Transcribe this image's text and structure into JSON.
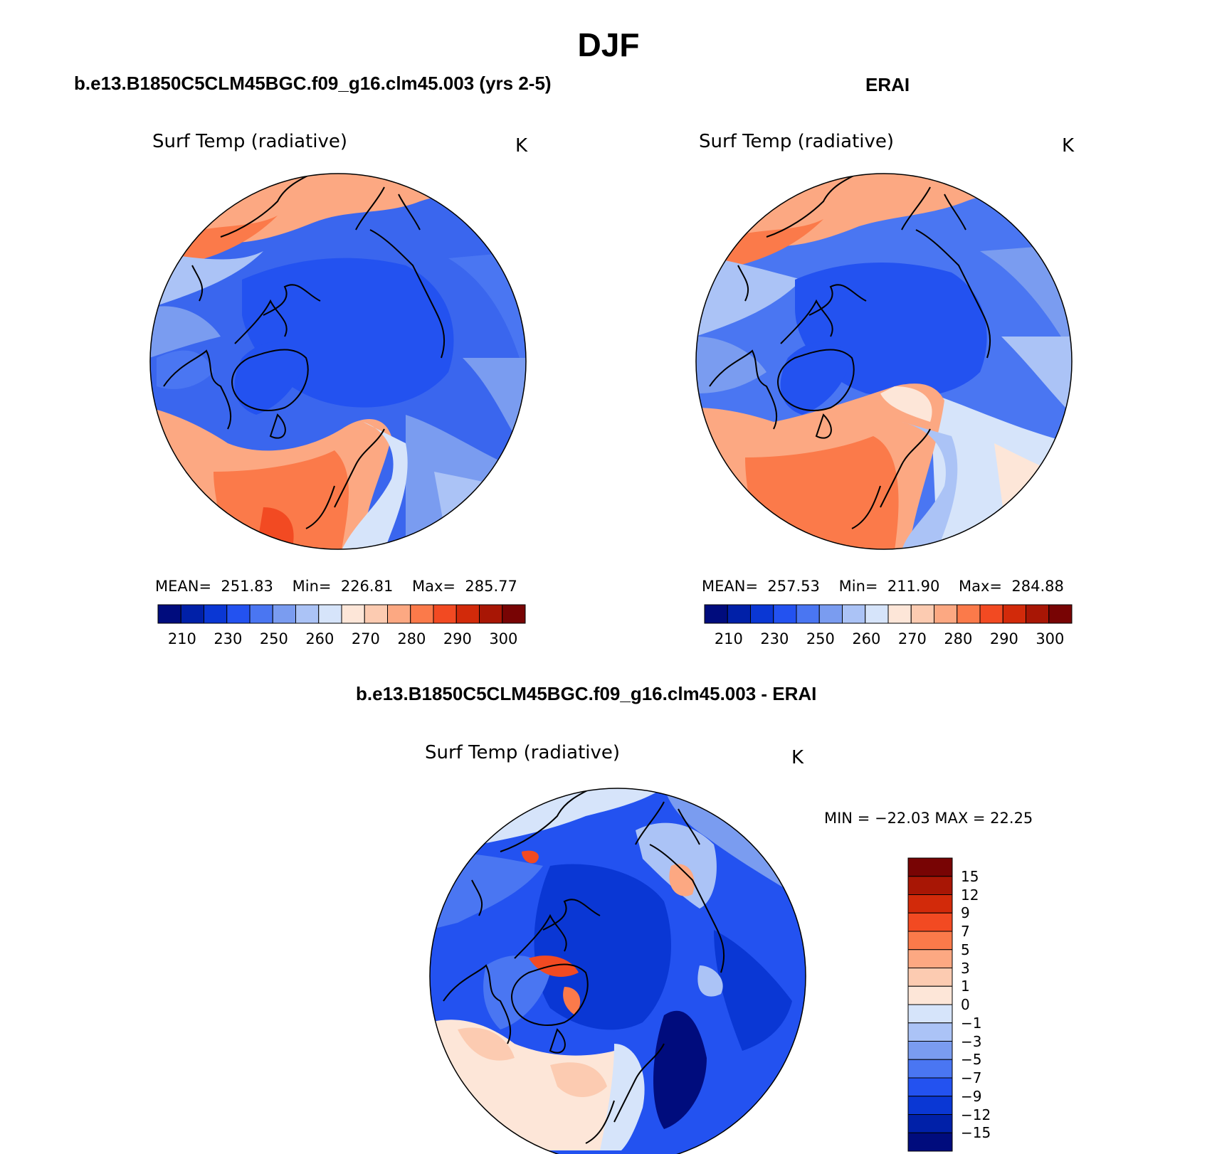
{
  "title": "DJF",
  "panels": [
    {
      "id": "model",
      "case_title": "b.e13.B1850C5CLM45BGC.f09_g16.clm45.003 (yrs 2-5)",
      "variable": "Surf Temp (radiative)",
      "units": "K",
      "stats": {
        "mean_label": "MEAN=",
        "mean": "251.83",
        "min_label": "Min=",
        "min": "226.81",
        "max_label": "Max=",
        "max": "285.77"
      }
    },
    {
      "id": "erai",
      "case_title": "ERAI",
      "variable": "Surf Temp (radiative)",
      "units": "K",
      "stats": {
        "mean_label": "MEAN=",
        "mean": "257.53",
        "min_label": "Min=",
        "min": "211.90",
        "max_label": "Max=",
        "max": "284.88"
      }
    }
  ],
  "difference": {
    "case_title": "b.e13.B1850C5CLM45BGC.f09_g16.clm45.003 - ERAI",
    "variable": "Surf Temp (radiative)",
    "units": "K",
    "stats_text": "MIN = −22.03 MAX =   22.25"
  },
  "abs_colorbar": {
    "colors": [
      "#000c7d",
      "#0020a8",
      "#0a37d4",
      "#2352f0",
      "#4a76f2",
      "#7a9cf0",
      "#abc3f6",
      "#d6e4fa",
      "#fde6d8",
      "#fccbb1",
      "#fca882",
      "#fb7a4a",
      "#f24a22",
      "#d22a0a",
      "#a81605",
      "#780404"
    ],
    "labels": [
      "210",
      "230",
      "250",
      "260",
      "270",
      "280",
      "290",
      "300"
    ]
  },
  "diff_colorbar": {
    "colors": [
      "#000c7d",
      "#0020a8",
      "#0a37d4",
      "#2352f0",
      "#4a76f2",
      "#7a9cf0",
      "#abc3f6",
      "#d6e4fa",
      "#fde6d8",
      "#fccbb1",
      "#fca882",
      "#fb7a4a",
      "#f24a22",
      "#d22a0a",
      "#a81605",
      "#780404"
    ],
    "labels": [
      "15",
      "12",
      "9",
      "7",
      "5",
      "3",
      "1",
      "0",
      "−1",
      "−3",
      "−5",
      "−7",
      "−9",
      "−12",
      "−15"
    ]
  }
}
